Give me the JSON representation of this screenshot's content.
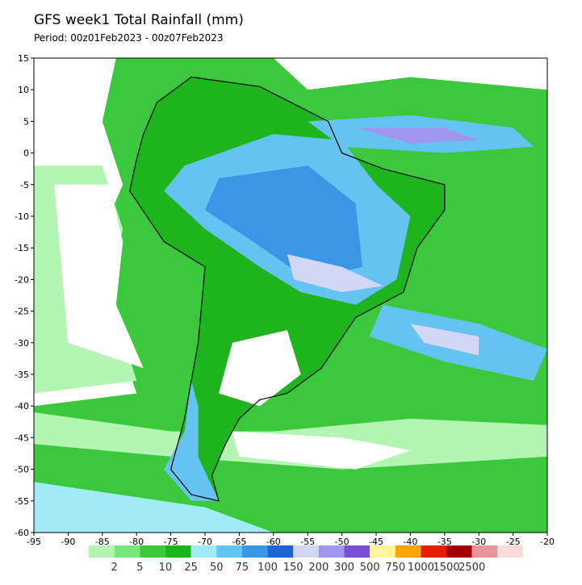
{
  "title": "GFS week1 Total Rainfall (mm)",
  "subtitle": "Period: 00z01Feb2023 - 00z07Feb2023",
  "map": {
    "xlim": [
      -95,
      -20
    ],
    "ylim": [
      -60,
      15
    ],
    "xticks": [
      -95,
      -90,
      -85,
      -80,
      -75,
      -70,
      -65,
      -60,
      -55,
      -50,
      -45,
      -40,
      -35,
      -30,
      -25,
      -20
    ],
    "yticks": [
      15,
      10,
      5,
      0,
      -5,
      -10,
      -15,
      -20,
      -25,
      -30,
      -35,
      -40,
      -45,
      -50,
      -55,
      -60
    ]
  },
  "colorbar": {
    "levels": [
      2,
      5,
      10,
      25,
      50,
      75,
      100,
      150,
      200,
      300,
      500,
      750,
      1000,
      1500,
      2500
    ],
    "colors": [
      "#b4f5b4",
      "#78e678",
      "#3cc83c",
      "#1eb41e",
      "#a0ebf5",
      "#64c3f0",
      "#3c96e6",
      "#1e64d2",
      "#d2d7f5",
      "#a096f0",
      "#7850d2",
      "#fff5a0",
      "#ffa500",
      "#e61e00",
      "#a50000",
      "#e69696",
      "#fadcdc"
    ]
  }
}
